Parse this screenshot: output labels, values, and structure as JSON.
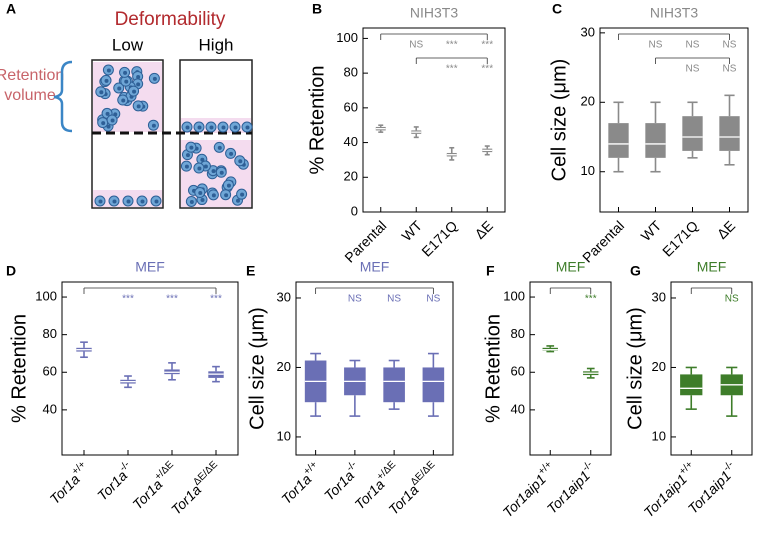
{
  "chart_data": [
    {
      "type": "diagram",
      "panel": "A",
      "title": "Deformability",
      "columns": [
        "Low",
        "High"
      ],
      "side_label": [
        "Retention",
        "volume"
      ]
    },
    {
      "type": "box",
      "panel": "B",
      "title": "NIH3T3",
      "ylabel": "% Retention",
      "color": "#8a8a8a",
      "categories": [
        "Parental",
        "WT",
        "E171Q",
        "ΔE"
      ],
      "boxes": [
        {
          "min": 46,
          "q1": 47,
          "median": 48,
          "q3": 49,
          "max": 50
        },
        {
          "min": 43,
          "q1": 45,
          "median": 46,
          "q3": 47,
          "max": 49
        },
        {
          "min": 30,
          "q1": 32,
          "median": 33,
          "q3": 34,
          "max": 37
        },
        {
          "min": 33,
          "q1": 34.5,
          "median": 35.5,
          "q3": 36.5,
          "max": 38
        }
      ],
      "ylim": [
        0,
        106
      ],
      "yticks": [
        0,
        20,
        40,
        60,
        80,
        100
      ],
      "significance": [
        [
          "NS",
          "***",
          "***"
        ],
        [
          "***",
          "***"
        ]
      ]
    },
    {
      "type": "box",
      "panel": "C",
      "title": "NIH3T3",
      "ylabel": "Cell size (μm)",
      "color": "#8a8a8a",
      "categories": [
        "Parental",
        "WT",
        "E171Q",
        "ΔE"
      ],
      "boxes": [
        {
          "min": 10,
          "q1": 12,
          "median": 14,
          "q3": 17,
          "max": 20
        },
        {
          "min": 10,
          "q1": 12,
          "median": 14,
          "q3": 17,
          "max": 20
        },
        {
          "min": 12,
          "q1": 13,
          "median": 15,
          "q3": 18,
          "max": 20
        },
        {
          "min": 11,
          "q1": 13,
          "median": 15,
          "q3": 18,
          "max": 21
        }
      ],
      "ylim": [
        4.2,
        30.7
      ],
      "yticks": [
        10,
        20,
        30
      ],
      "significance": [
        [
          "NS",
          "NS",
          "NS"
        ],
        [
          "NS",
          "NS"
        ]
      ]
    },
    {
      "type": "box",
      "panel": "D",
      "title": "MEF",
      "ylabel": "% Retention",
      "color": "#6a6fb5",
      "categories": [
        {
          "gene": "Tor1a",
          "genotype": "+/+"
        },
        {
          "gene": "Tor1a",
          "genotype": "-/-"
        },
        {
          "gene": "Tor1a",
          "genotype": "+/ΔE"
        },
        {
          "gene": "Tor1a",
          "genotype": "ΔE/ΔE"
        }
      ],
      "boxes": [
        {
          "min": 68,
          "q1": 71,
          "median": 72,
          "q3": 73,
          "max": 76
        },
        {
          "min": 52,
          "q1": 54,
          "median": 55,
          "q3": 56,
          "max": 58
        },
        {
          "min": 56,
          "q1": 59,
          "median": 60,
          "q3": 61.5,
          "max": 65
        },
        {
          "min": 55,
          "q1": 57,
          "median": 59,
          "q3": 60.5,
          "max": 63
        }
      ],
      "ylim": [
        16,
        108
      ],
      "yticks": [
        40,
        60,
        80,
        100
      ],
      "significance": [
        [
          "***",
          "***",
          "***"
        ]
      ]
    },
    {
      "type": "box",
      "panel": "E",
      "title": "MEF",
      "ylabel": "Cell size (μm)",
      "color": "#6a6fb5",
      "categories": [
        {
          "gene": "Tor1a",
          "genotype": "+/+"
        },
        {
          "gene": "Tor1a",
          "genotype": "-/-"
        },
        {
          "gene": "Tor1a",
          "genotype": "+/ΔE"
        },
        {
          "gene": "Tor1a",
          "genotype": "ΔE/ΔE"
        }
      ],
      "boxes": [
        {
          "min": 13,
          "q1": 15,
          "median": 18,
          "q3": 21,
          "max": 22
        },
        {
          "min": 13,
          "q1": 16,
          "median": 18,
          "q3": 20,
          "max": 21
        },
        {
          "min": 14,
          "q1": 15,
          "median": 18,
          "q3": 20,
          "max": 21
        },
        {
          "min": 13,
          "q1": 15,
          "median": 18,
          "q3": 20,
          "max": 22
        }
      ],
      "ylim": [
        7.4,
        32.3
      ],
      "yticks": [
        10,
        20,
        30
      ],
      "significance": [
        [
          "NS",
          "NS",
          "NS"
        ]
      ]
    },
    {
      "type": "box",
      "panel": "F",
      "title": "MEF",
      "ylabel": "% Retention",
      "color": "#3e7d2a",
      "categories": [
        {
          "gene": "Tor1aip1",
          "genotype": "+/+"
        },
        {
          "gene": "Tor1aip1",
          "genotype": "-/-"
        }
      ],
      "boxes": [
        {
          "min": 71,
          "q1": 71.5,
          "median": 72,
          "q3": 73,
          "max": 74
        },
        {
          "min": 57,
          "q1": 58.5,
          "median": 59.5,
          "q3": 60.5,
          "max": 62
        }
      ],
      "ylim": [
        16,
        108
      ],
      "yticks": [
        40,
        60,
        80,
        100
      ],
      "significance": [
        [
          "***"
        ]
      ]
    },
    {
      "type": "box",
      "panel": "G",
      "title": "MEF",
      "ylabel": "Cell size (μm)",
      "color": "#3e7d2a",
      "categories": [
        {
          "gene": "Tor1aip1",
          "genotype": "+/+"
        },
        {
          "gene": "Tor1aip1",
          "genotype": "-/-"
        }
      ],
      "boxes": [
        {
          "min": 14,
          "q1": 16,
          "median": 17,
          "q3": 19,
          "max": 20
        },
        {
          "min": 13,
          "q1": 16,
          "median": 17.5,
          "q3": 19,
          "max": 20
        }
      ],
      "ylim": [
        7.4,
        32.3
      ],
      "yticks": [
        10,
        20,
        30
      ],
      "significance": [
        [
          "NS"
        ]
      ]
    }
  ]
}
